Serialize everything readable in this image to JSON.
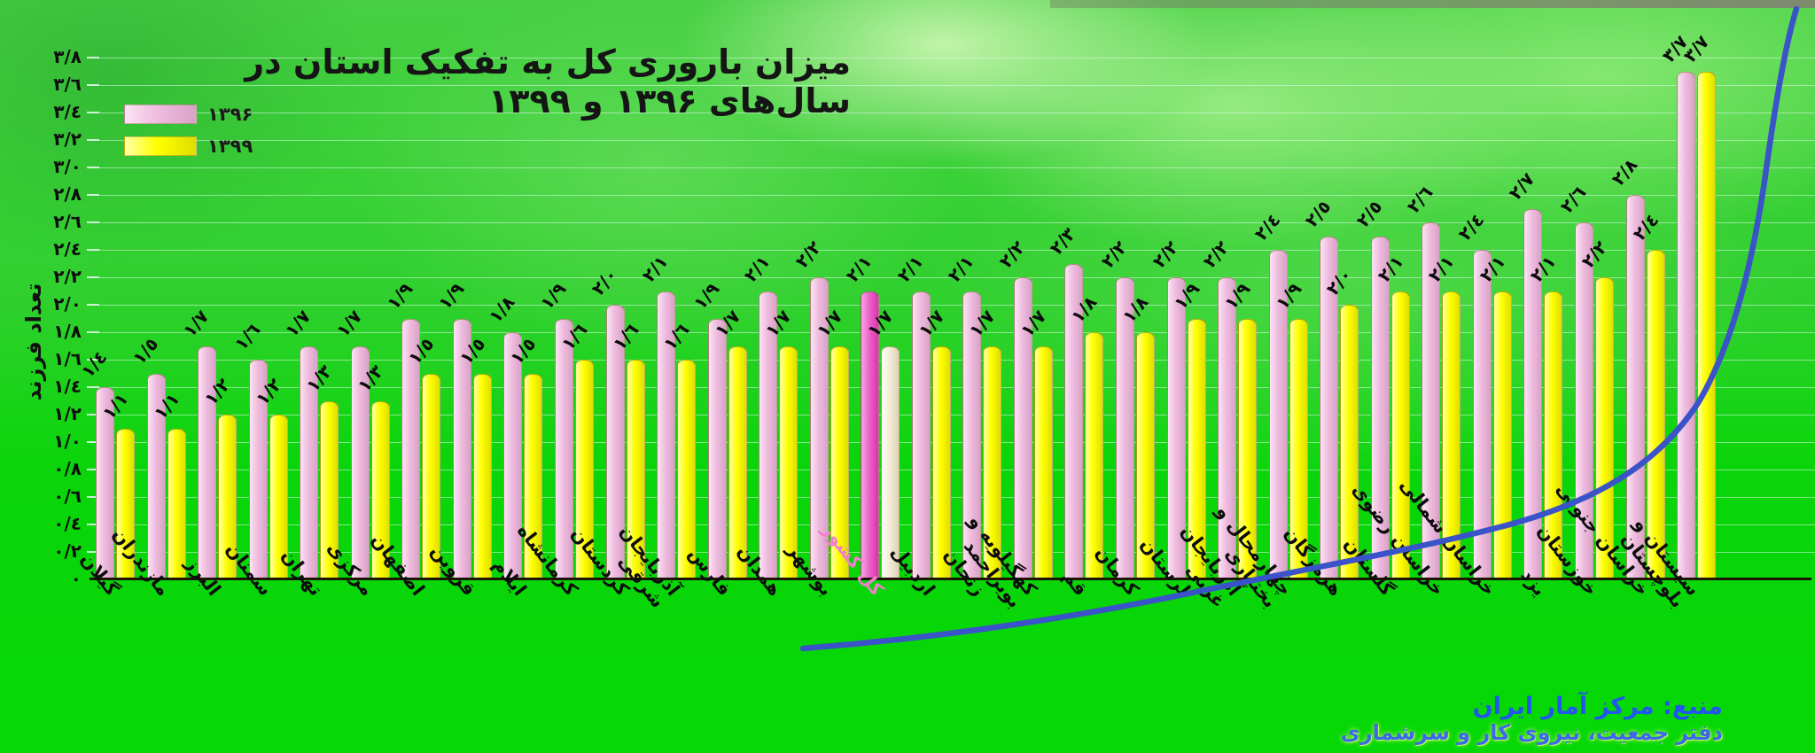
{
  "title": "میزان باروری کل به تفکیک استان در سال‌های ۱۳۹۶ و ۱۳۹۹",
  "legend": {
    "items": [
      {
        "label": "۱۳۹۶",
        "color": "#efbcdf"
      },
      {
        "label": "۱۳۹۹",
        "color": "#ffff00"
      }
    ]
  },
  "y_axis": {
    "title": "تعداد فرزند",
    "tick_labels_top_to_bottom": [
      "٣/٨",
      "٣/٦",
      "٣/٤",
      "٣/٢",
      "٣/٠",
      "٢/٨",
      "٢/٦",
      "٢/٤",
      "٢/٢",
      "٢/٠",
      "١/٨",
      "١/٦",
      "١/٤",
      "١/٢",
      "١/٠",
      "٠/٨",
      "٠/٦",
      "٠/٤",
      "٠/٢",
      "٠"
    ]
  },
  "source": {
    "line1": "منبع: مرکز آمار ایران",
    "line2": "دفتر جمعیت، نیروی کار و سرشماری"
  },
  "chart_data": {
    "type": "bar",
    "title": "میزان باروری کل به تفکیک استان در سال‌های ۱۳۹۶ و ۱۳۹۹",
    "ylabel": "تعداد فرزند",
    "ylim": [
      0,
      3.8
    ],
    "grid": true,
    "legend_position": "top-left",
    "highlight_index": 15,
    "highlight_colors": {
      "s1396": "#ee64cc",
      "s1399": "#f4eeda",
      "label": "#f27fce"
    },
    "bar_colors": {
      "s1396": "#efbcdf",
      "s1399": "#ffff00"
    },
    "overlay_curve_color": "#3b53c8",
    "categories": [
      "گیلان",
      "مازندران",
      "البرز",
      "سمنان",
      "تهران",
      "مرکزی",
      "اصفهان",
      "قزوین",
      "ایلام",
      "کرمانشاه",
      "کردستان",
      "آذربایجان\nشرقی",
      "فارس",
      "همدان",
      "بوشهر",
      "کل کشور",
      "اردبیل",
      "زنجان",
      "کهگیلویه و\nبویراحمد",
      "قم",
      "کرمان",
      "لرستان",
      "آذربایجان\nغربی",
      "چهارمحال و\nبختیاری",
      "هرمزگان",
      "گلستان",
      "خراسان رضوی",
      "خراسان شمالی",
      "یزد",
      "خوزستان",
      "خراسان جنوبی",
      "سیستان و\nبلوچستان"
    ],
    "series": [
      {
        "name": "۱۳۹۶",
        "values": [
          1.4,
          1.5,
          1.7,
          1.6,
          1.7,
          1.7,
          1.9,
          1.9,
          1.8,
          1.9,
          2.0,
          2.1,
          1.9,
          2.1,
          2.2,
          2.1,
          2.1,
          2.1,
          2.2,
          2.3,
          2.2,
          2.2,
          2.2,
          2.4,
          2.5,
          2.5,
          2.6,
          2.4,
          2.7,
          2.6,
          2.8,
          3.7
        ],
        "value_labels": [
          "١/٤",
          "١/٥",
          "١/٧",
          "١/٦",
          "١/٧",
          "١/٧",
          "١/٩",
          "١/٩",
          "١/٨",
          "١/٩",
          "٢/٠",
          "٢/١",
          "١/٩",
          "٢/١",
          "٢/٢",
          "٢/١",
          "٢/١",
          "٢/١",
          "٢/٢",
          "٢/٣",
          "٢/٢",
          "٢/٢",
          "٢/٢",
          "٢/٤",
          "٢/٥",
          "٢/٥",
          "٢/٦",
          "٢/٤",
          "٢/٧",
          "٢/٦",
          "٢/٨",
          "٣/٧"
        ]
      },
      {
        "name": "۱۳۹۹",
        "values": [
          1.1,
          1.1,
          1.2,
          1.2,
          1.3,
          1.3,
          1.5,
          1.5,
          1.5,
          1.6,
          1.6,
          1.6,
          1.7,
          1.7,
          1.7,
          1.7,
          1.7,
          1.7,
          1.7,
          1.8,
          1.8,
          1.9,
          1.9,
          1.9,
          2.0,
          2.1,
          2.1,
          2.1,
          2.1,
          2.2,
          2.4,
          3.7
        ],
        "value_labels": [
          "١/١",
          "١/١",
          "١/٢",
          "١/٢",
          "١/٣",
          "١/٣",
          "١/٥",
          "١/٥",
          "١/٥",
          "١/٦",
          "١/٦",
          "١/٦",
          "١/٧",
          "١/٧",
          "١/٧",
          "١/٧",
          "١/٧",
          "١/٧",
          "١/٧",
          "١/٨",
          "١/٨",
          "١/٩",
          "١/٩",
          "١/٩",
          "٢/٠",
          "٢/١",
          "٢/١",
          "٢/١",
          "٢/١",
          "٢/٢",
          "٢/٤",
          "٣/٧"
        ]
      }
    ]
  }
}
